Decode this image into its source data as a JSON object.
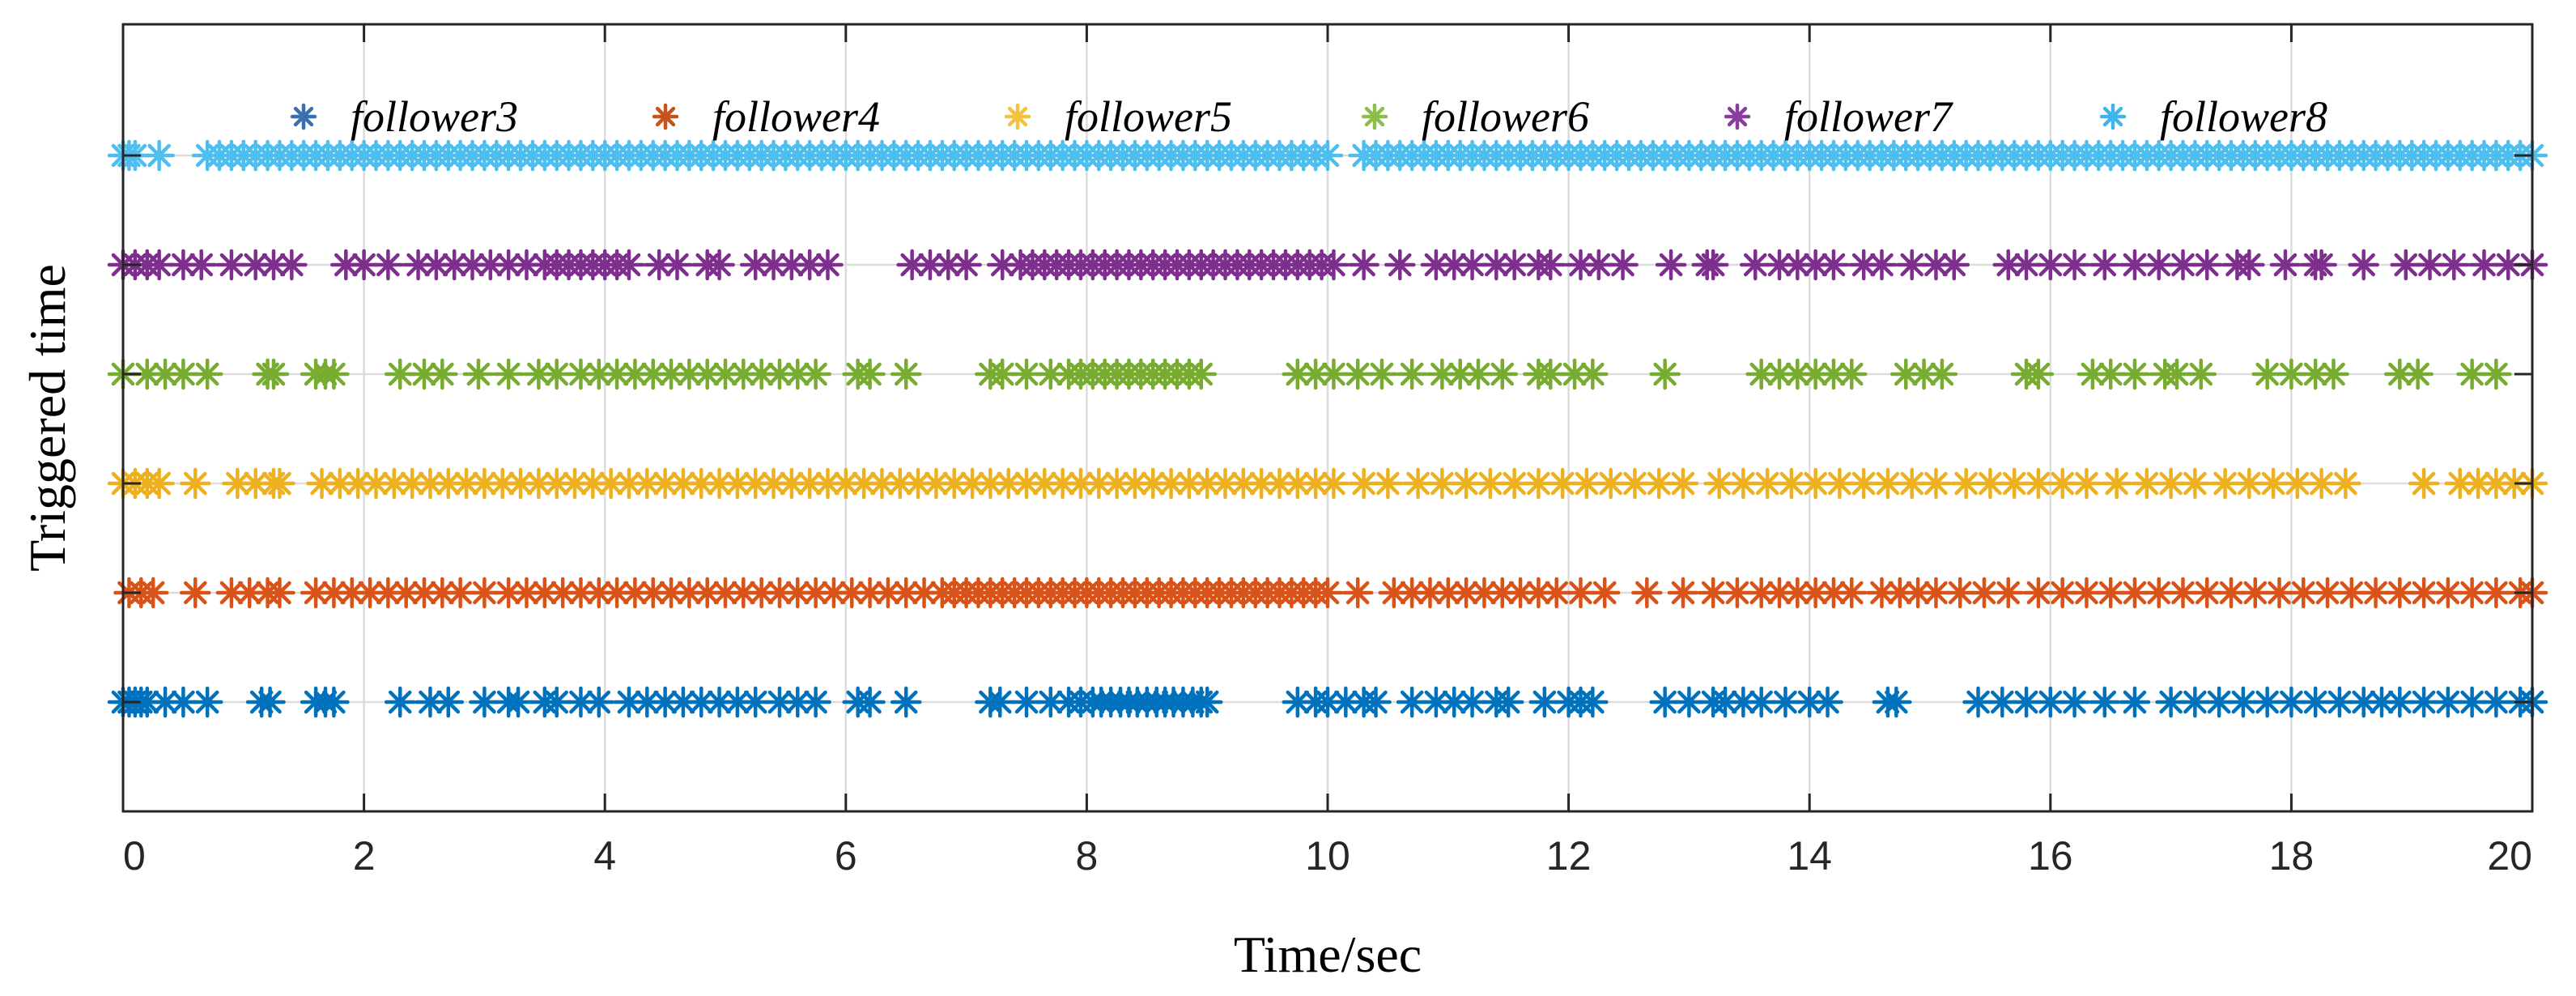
{
  "chart_data": {
    "type": "scatter",
    "title": "",
    "xlabel": "Time/sec",
    "ylabel": "Triggered time",
    "xlim": [
      0,
      20
    ],
    "xticks": [
      0,
      2,
      4,
      6,
      8,
      10,
      12,
      14,
      16,
      18,
      20
    ],
    "xtick_labels": [
      "0",
      "2",
      "4",
      "6",
      "8",
      "10",
      "12",
      "14",
      "16",
      "18",
      "20"
    ],
    "ylim": [
      0,
      7.2
    ],
    "grid": true,
    "marker": "asterisk",
    "legend_position": "top",
    "series": [
      {
        "name": "follower3",
        "legend_color": "#3a6fb0",
        "color": "#0072bd",
        "level": 1,
        "event_times": [
          0.0,
          0.05,
          0.1,
          0.15,
          0.2,
          0.35,
          0.5,
          0.7,
          1.15,
          1.22,
          1.6,
          1.68,
          1.75,
          2.3,
          2.55,
          2.7,
          3.0,
          3.2,
          3.28,
          3.5,
          3.6,
          3.8,
          3.95,
          4.2,
          4.35,
          4.5,
          4.65,
          4.8,
          4.95,
          5.1,
          5.25,
          5.45,
          5.6,
          5.75,
          6.1,
          6.2,
          6.5,
          7.2,
          7.28,
          7.5,
          7.7,
          7.85,
          7.95,
          8.05,
          8.12,
          8.2,
          8.28,
          8.35,
          8.42,
          8.5,
          8.58,
          8.65,
          8.72,
          8.8,
          8.88,
          8.95,
          9.0,
          9.75,
          9.9,
          10.0,
          10.15,
          10.3,
          10.4,
          10.7,
          10.9,
          11.05,
          11.2,
          11.4,
          11.5,
          11.8,
          12.0,
          12.1,
          12.2,
          12.8,
          13.0,
          13.2,
          13.3,
          13.45,
          13.6,
          13.8,
          14.0,
          14.15,
          14.65,
          14.72,
          15.4,
          15.6,
          15.8,
          16.0,
          16.2,
          16.45,
          16.7,
          17.0,
          17.2,
          17.4,
          17.6,
          17.8,
          18.0,
          18.2,
          18.4,
          18.6,
          18.75,
          18.9,
          19.1,
          19.3,
          19.5,
          19.7,
          19.9,
          20.0
        ]
      },
      {
        "name": "follower4",
        "legend_color": "#c8531a",
        "color": "#d95319",
        "level": 2,
        "event_times": [
          0.05,
          0.15,
          0.25,
          0.6,
          0.9,
          1.05,
          1.2,
          1.3,
          1.6,
          1.75,
          1.9,
          2.05,
          2.2,
          2.35,
          2.5,
          2.65,
          2.8,
          3.0,
          3.2,
          3.35,
          3.5,
          3.65,
          3.8,
          3.95,
          4.1,
          4.25,
          4.4,
          4.55,
          4.7,
          4.85,
          5.0,
          5.15,
          5.3,
          5.45,
          5.6,
          5.75,
          5.9,
          6.05,
          6.2,
          6.35,
          6.5,
          6.65,
          6.8,
          6.9,
          7.0,
          7.1,
          7.2,
          7.3,
          7.4,
          7.5,
          7.6,
          7.7,
          7.8,
          7.9,
          8.0,
          8.1,
          8.2,
          8.3,
          8.4,
          8.5,
          8.6,
          8.7,
          8.8,
          8.9,
          9.0,
          9.1,
          9.2,
          9.3,
          9.4,
          9.5,
          9.6,
          9.7,
          9.8,
          9.9,
          10.0,
          10.25,
          10.55,
          10.7,
          10.85,
          11.0,
          11.15,
          11.3,
          11.45,
          11.6,
          11.75,
          11.9,
          12.1,
          12.3,
          12.65,
          12.95,
          13.2,
          13.4,
          13.6,
          13.75,
          13.9,
          14.05,
          14.2,
          14.35,
          14.6,
          14.75,
          14.9,
          15.05,
          15.25,
          15.45,
          15.65,
          15.9,
          16.1,
          16.3,
          16.5,
          16.7,
          16.9,
          17.1,
          17.3,
          17.5,
          17.7,
          17.9,
          18.1,
          18.3,
          18.5,
          18.7,
          18.9,
          19.1,
          19.3,
          19.5,
          19.7,
          19.9,
          20.0
        ]
      },
      {
        "name": "follower5",
        "legend_color": "#f2c240",
        "color": "#edb120",
        "level": 3,
        "event_times": [
          0.0,
          0.1,
          0.2,
          0.3,
          0.6,
          0.95,
          1.1,
          1.25,
          1.3,
          1.65,
          1.8,
          1.95,
          2.1,
          2.25,
          2.4,
          2.55,
          2.7,
          2.85,
          3.0,
          3.15,
          3.3,
          3.45,
          3.6,
          3.75,
          3.9,
          4.05,
          4.2,
          4.35,
          4.5,
          4.65,
          4.8,
          4.95,
          5.1,
          5.25,
          5.4,
          5.55,
          5.7,
          5.85,
          6.0,
          6.15,
          6.3,
          6.45,
          6.6,
          6.75,
          6.9,
          7.05,
          7.2,
          7.35,
          7.5,
          7.65,
          7.8,
          7.95,
          8.1,
          8.25,
          8.4,
          8.55,
          8.7,
          8.85,
          9.0,
          9.15,
          9.3,
          9.45,
          9.6,
          9.75,
          9.9,
          10.05,
          10.3,
          10.5,
          10.75,
          10.95,
          11.15,
          11.35,
          11.55,
          11.75,
          11.95,
          12.15,
          12.35,
          12.55,
          12.75,
          12.95,
          13.25,
          13.45,
          13.65,
          13.85,
          14.05,
          14.25,
          14.45,
          14.65,
          14.85,
          15.05,
          15.3,
          15.5,
          15.7,
          15.9,
          16.1,
          16.3,
          16.55,
          16.8,
          17.0,
          17.2,
          17.45,
          17.65,
          17.85,
          18.05,
          18.25,
          18.45,
          19.1,
          19.4,
          19.55,
          19.7,
          19.85,
          20.0
        ]
      },
      {
        "name": "follower6",
        "legend_color": "#8cbf4a",
        "color": "#77ac30",
        "level": 4,
        "event_times": [
          0.0,
          0.2,
          0.35,
          0.5,
          0.7,
          1.2,
          1.25,
          1.6,
          1.68,
          1.75,
          2.3,
          2.5,
          2.65,
          2.95,
          3.2,
          3.45,
          3.6,
          3.8,
          3.95,
          4.1,
          4.25,
          4.4,
          4.55,
          4.7,
          4.85,
          5.0,
          5.15,
          5.3,
          5.45,
          5.6,
          5.75,
          6.1,
          6.2,
          6.5,
          7.2,
          7.3,
          7.5,
          7.7,
          7.85,
          7.95,
          8.05,
          8.15,
          8.25,
          8.35,
          8.45,
          8.55,
          8.65,
          8.75,
          8.85,
          8.95,
          9.75,
          9.9,
          10.05,
          10.25,
          10.45,
          10.7,
          10.95,
          11.1,
          11.25,
          11.45,
          11.75,
          11.85,
          12.05,
          12.2,
          12.8,
          13.6,
          13.75,
          13.9,
          14.05,
          14.2,
          14.35,
          14.8,
          14.95,
          15.1,
          15.8,
          15.9,
          16.35,
          16.5,
          16.7,
          16.95,
          17.05,
          17.25,
          17.8,
          18.0,
          18.2,
          18.35,
          18.9,
          19.05,
          19.5,
          19.7
        ]
      },
      {
        "name": "follower7",
        "legend_color": "#8a3d9e",
        "color": "#7e2f8e",
        "level": 5,
        "event_times": [
          0.0,
          0.1,
          0.2,
          0.3,
          0.5,
          0.65,
          0.9,
          1.1,
          1.25,
          1.4,
          1.85,
          2.0,
          2.2,
          2.45,
          2.6,
          2.75,
          2.9,
          3.05,
          3.2,
          3.35,
          3.5,
          3.6,
          3.7,
          3.8,
          3.9,
          4.0,
          4.1,
          4.2,
          4.45,
          4.6,
          4.85,
          4.95,
          5.25,
          5.4,
          5.55,
          5.7,
          5.85,
          6.55,
          6.7,
          6.85,
          7.0,
          7.3,
          7.45,
          7.55,
          7.65,
          7.75,
          7.85,
          7.95,
          8.05,
          8.15,
          8.25,
          8.35,
          8.45,
          8.55,
          8.65,
          8.75,
          8.85,
          8.95,
          9.05,
          9.15,
          9.25,
          9.35,
          9.45,
          9.55,
          9.65,
          9.75,
          9.85,
          9.95,
          10.05,
          10.3,
          10.6,
          10.9,
          11.05,
          11.2,
          11.4,
          11.55,
          11.75,
          11.85,
          12.1,
          12.25,
          12.45,
          12.85,
          13.15,
          13.2,
          13.55,
          13.75,
          13.9,
          14.05,
          14.2,
          14.45,
          14.6,
          14.85,
          15.05,
          15.2,
          15.65,
          15.8,
          16.0,
          16.2,
          16.45,
          16.7,
          16.9,
          17.1,
          17.3,
          17.55,
          17.65,
          17.95,
          18.2,
          18.25,
          18.6,
          18.95,
          19.15,
          19.35,
          19.6,
          19.8,
          20.0
        ]
      },
      {
        "name": "follower8",
        "legend_color": "#3fb4ea",
        "color": "#4dbeee",
        "level": 6,
        "event_times": [
          0.0,
          0.05,
          0.1,
          0.3,
          0.7,
          0.8,
          0.9,
          1.0,
          1.1,
          1.2,
          1.3,
          1.4,
          1.5,
          1.6,
          1.7,
          1.8,
          1.9,
          2.0,
          2.1,
          2.2,
          2.3,
          2.4,
          2.5,
          2.6,
          2.7,
          2.8,
          2.9,
          3.0,
          3.1,
          3.2,
          3.3,
          3.4,
          3.5,
          3.6,
          3.7,
          3.8,
          3.9,
          4.0,
          4.1,
          4.2,
          4.3,
          4.4,
          4.5,
          4.6,
          4.7,
          4.8,
          4.9,
          5.0,
          5.1,
          5.2,
          5.3,
          5.4,
          5.5,
          5.6,
          5.7,
          5.8,
          5.9,
          6.0,
          6.1,
          6.2,
          6.3,
          6.4,
          6.5,
          6.6,
          6.7,
          6.8,
          6.9,
          7.0,
          7.1,
          7.2,
          7.3,
          7.4,
          7.5,
          7.6,
          7.7,
          7.8,
          7.9,
          8.0,
          8.1,
          8.2,
          8.3,
          8.4,
          8.5,
          8.6,
          8.7,
          8.8,
          8.9,
          9.0,
          9.1,
          9.2,
          9.3,
          9.4,
          9.5,
          9.6,
          9.7,
          9.8,
          9.9,
          10.0,
          10.3,
          10.4,
          10.5,
          10.6,
          10.7,
          10.8,
          10.9,
          11.0,
          11.1,
          11.2,
          11.3,
          11.4,
          11.5,
          11.6,
          11.7,
          11.8,
          11.9,
          12.0,
          12.1,
          12.2,
          12.3,
          12.4,
          12.5,
          12.6,
          12.7,
          12.8,
          12.9,
          13.0,
          13.1,
          13.2,
          13.3,
          13.4,
          13.5,
          13.6,
          13.7,
          13.8,
          13.9,
          14.0,
          14.1,
          14.2,
          14.3,
          14.4,
          14.5,
          14.6,
          14.7,
          14.8,
          14.9,
          15.0,
          15.1,
          15.2,
          15.3,
          15.4,
          15.5,
          15.6,
          15.7,
          15.8,
          15.9,
          16.0,
          16.1,
          16.2,
          16.3,
          16.4,
          16.5,
          16.6,
          16.7,
          16.8,
          16.9,
          17.0,
          17.1,
          17.2,
          17.3,
          17.4,
          17.5,
          17.6,
          17.7,
          17.8,
          17.9,
          18.0,
          18.1,
          18.2,
          18.3,
          18.4,
          18.5,
          18.6,
          18.7,
          18.8,
          18.9,
          19.0,
          19.1,
          19.2,
          19.3,
          19.4,
          19.5,
          19.6,
          19.7,
          19.8,
          19.9,
          20.0
        ]
      }
    ]
  }
}
